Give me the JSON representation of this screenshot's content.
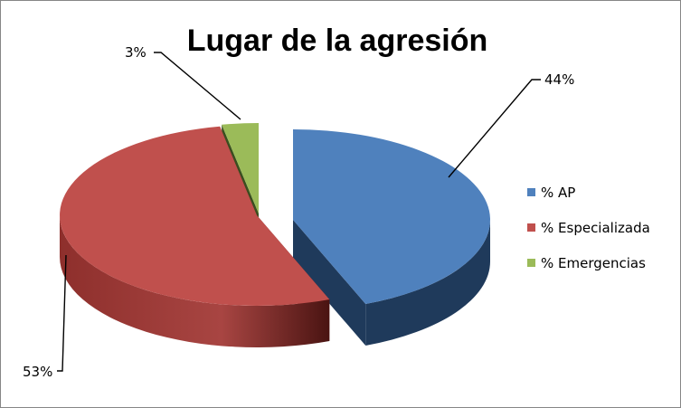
{
  "chart_data": {
    "type": "pie",
    "title": "Lugar de la agresión",
    "labels": [
      "% AP",
      "% Especializada",
      "% Emergencias"
    ],
    "values": [
      44,
      53,
      3
    ],
    "data_labels": [
      "44%",
      "53%",
      "3%"
    ],
    "colors": {
      "top": [
        "#4f81bd",
        "#c0504d",
        "#9bbb59"
      ],
      "side": [
        "#1f3a5b",
        "#6b1c1a",
        "#3a4f1f"
      ]
    },
    "exploded": true,
    "three_d": true,
    "legend_position": "right"
  }
}
